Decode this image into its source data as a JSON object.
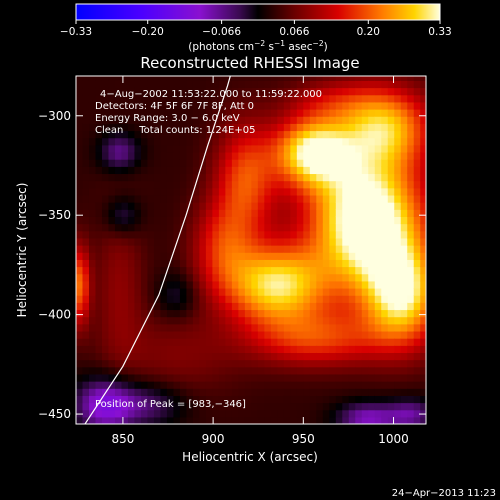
{
  "chart_data": {
    "type": "heatmap",
    "title": "Reconstructed RHESSI Image",
    "xlabel": "Heliocentric X (arcsec)",
    "ylabel": "Heliocentric Y (arcsec)",
    "xlim": [
      824,
      1018
    ],
    "ylim": [
      -455,
      -280
    ],
    "x_ticks": [
      850,
      900,
      950,
      1000
    ],
    "y_ticks": [
      -450,
      -400,
      -350,
      -300
    ],
    "colorbar": {
      "range": [
        -0.33,
        0.33
      ],
      "tick_labels": [
        "−0.33",
        "−0.20",
        "−0.066",
        "0.066",
        "0.20",
        "0.33"
      ],
      "tick_values": [
        -0.33,
        -0.2,
        -0.066,
        0.066,
        0.2,
        0.33
      ],
      "unit_prefix": "(photons cm",
      "unit_sup1": "−2",
      "unit_mid": " s",
      "unit_sup2": "−1",
      "unit_mid2": " asec",
      "unit_sup3": "−2",
      "unit_suffix": ")"
    },
    "annotations": [
      "4−Aug−2002 11:53:22.000 to 11:59:22.000",
      "Detectors: 4F 5F 6F 7F 8F, Att 0",
      "Energy Range: 3.0 − 6.0 keV",
      "Clean     Total counts: 1.24E+05"
    ],
    "peak_label": "Position of Peak = [983,−346]",
    "peak": [
      983,
      -346
    ],
    "limb": [
      [
        829,
        -455
      ],
      [
        850,
        -426
      ],
      [
        870,
        -390
      ],
      [
        885,
        -350
      ],
      [
        897,
        -315
      ],
      [
        908,
        -285
      ],
      [
        912,
        -272
      ]
    ],
    "sources": [
      {
        "x": 985,
        "y": -352,
        "amp": 0.36,
        "sx": 22,
        "sy": 24
      },
      {
        "x": 955,
        "y": -318,
        "amp": 0.28,
        "sx": 15,
        "sy": 12
      },
      {
        "x": 995,
        "y": -305,
        "amp": 0.22,
        "sx": 18,
        "sy": 14
      },
      {
        "x": 935,
        "y": -385,
        "amp": 0.27,
        "sx": 20,
        "sy": 14
      },
      {
        "x": 1005,
        "y": -390,
        "amp": 0.26,
        "sx": 15,
        "sy": 18
      },
      {
        "x": 918,
        "y": -332,
        "amp": 0.16,
        "sx": 12,
        "sy": 20
      },
      {
        "x": 905,
        "y": -365,
        "amp": 0.12,
        "sx": 12,
        "sy": 16
      },
      {
        "x": 958,
        "y": -412,
        "amp": 0.14,
        "sx": 26,
        "sy": 10
      },
      {
        "x": 848,
        "y": -385,
        "amp": 0.06,
        "sx": 10,
        "sy": 30
      },
      {
        "x": 880,
        "y": -420,
        "amp": 0.05,
        "sx": 25,
        "sy": 15
      },
      {
        "x": 965,
        "y": -292,
        "amp": 0.07,
        "sx": 18,
        "sy": 8
      }
    ],
    "dark_spots": [
      {
        "x": 848,
        "y": -318,
        "amp": -0.1,
        "sx": 8,
        "sy": 7
      },
      {
        "x": 850,
        "y": -350,
        "amp": -0.08,
        "sx": 7,
        "sy": 7
      },
      {
        "x": 880,
        "y": -390,
        "amp": -0.06,
        "sx": 8,
        "sy": 8
      },
      {
        "x": 840,
        "y": -445,
        "amp": -0.15,
        "sx": 12,
        "sy": 10
      },
      {
        "x": 865,
        "y": -445,
        "amp": -0.08,
        "sx": 14,
        "sy": 8
      },
      {
        "x": 985,
        "y": -452,
        "amp": -0.12,
        "sx": 12,
        "sy": 6
      },
      {
        "x": 1010,
        "y": -450,
        "amp": -0.1,
        "sx": 10,
        "sy": 6
      }
    ],
    "edge_source": {
      "x": 826,
      "y": -385,
      "amp": 0.18,
      "sx": 4,
      "sy": 14
    },
    "background": 0.03
  },
  "footer": {
    "date": "24−Apr−2013 11:23"
  }
}
